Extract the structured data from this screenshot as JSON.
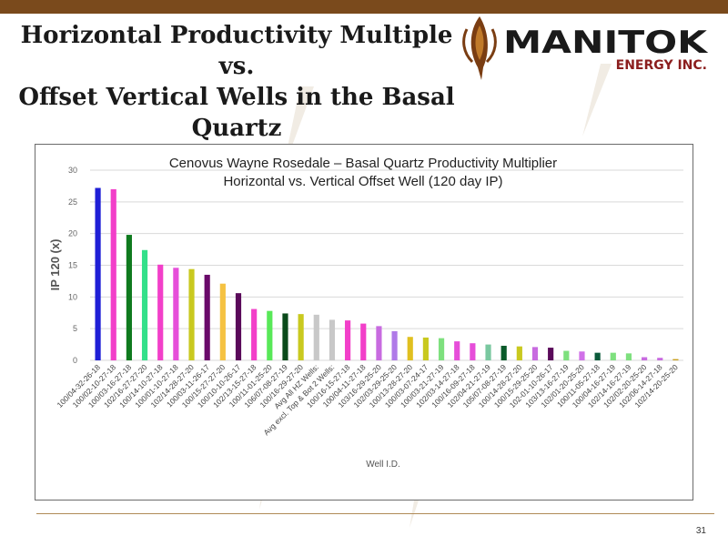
{
  "slide": {
    "title_lines": [
      "Horizontal Productivity Multiple vs.",
      "Offset Vertical Wells in the Basal",
      "Quartz"
    ],
    "page_number": "31"
  },
  "logo": {
    "name": "MANITOK",
    "subtitle": "ENERGY INC.",
    "icon": "antler-flame-icon"
  },
  "colors": {
    "top_band": "#7a4a1c",
    "logo_text": "#1a1a1a",
    "logo_accent": "#8b1e1e",
    "rule": "#b08a57"
  },
  "chart_data": {
    "type": "bar",
    "title": [
      "Cenovus Wayne Rosedale – Basal Quartz Productivity Multiplier",
      "Horizontal vs. Vertical Offset Well (120 day IP)"
    ],
    "xlabel": "Well I.D.",
    "ylabel": "IP 120 (x)",
    "ylim": [
      0,
      30
    ],
    "yticks": [
      0,
      5,
      10,
      15,
      20,
      25,
      30
    ],
    "grid": true,
    "legend": "none",
    "categories": [
      "100/04-32-26-18",
      "100/02-10-27-18",
      "100/03-16-27-18",
      "102/16-27-27-20",
      "100/14-10-27-18",
      "100/01-10-27-18",
      "102/14-28-27-20",
      "100/03-11-26-17",
      "100/15-27-27-20",
      "100/10-10-26-17",
      "102/13-15-27-18",
      "100/11-01-25-20",
      "106/07-08-27-19",
      "100/16-29-27-20",
      "Avg All HZ Wells:",
      "Avg excl. Top & Bot 2 Wells:",
      "100/16-15-27-18",
      "100/04-11-27-18",
      "103/16-29-25-20",
      "102/03-29-25-20",
      "100/13-28-27-20",
      "100/03-07-24-17",
      "100/03-21-27-19",
      "102/03-14-27-18",
      "100/16-09-27-18",
      "102/04-21-27-19",
      "105/07-08-27-19",
      "100/14-28-27-20",
      "100/15-29-25-20",
      "102-01-10-26-17",
      "103/13-16-27-19",
      "102/01-20-25-20",
      "100/11-05-27-18",
      "100/04-16-27-19",
      "102/14-16-27-19",
      "102/02-20-25-20",
      "102/06-14-27-18",
      "102/14-20-25-20"
    ],
    "values": [
      27.2,
      27.0,
      19.8,
      17.4,
      15.1,
      14.6,
      14.4,
      13.5,
      12.1,
      10.6,
      8.1,
      7.8,
      7.4,
      7.3,
      7.2,
      6.4,
      6.3,
      5.8,
      5.4,
      4.6,
      3.7,
      3.6,
      3.5,
      3.0,
      2.7,
      2.5,
      2.3,
      2.2,
      2.1,
      2.0,
      1.5,
      1.4,
      1.2,
      1.2,
      1.1,
      0.5,
      0.4,
      0.2
    ],
    "colors": [
      "#1f1fd6",
      "#f23fc9",
      "#0f7a1e",
      "#33e08a",
      "#f23fc9",
      "#e64ed9",
      "#c9c91f",
      "#6a0a6a",
      "#f5c242",
      "#5a0a5a",
      "#f23fc9",
      "#58e858",
      "#0a4a1a",
      "#c9c91f",
      "#c8c8c8",
      "#c8c8c8",
      "#f23fc9",
      "#f23fc9",
      "#c86be0",
      "#b07ae8",
      "#e0c020",
      "#c9c91f",
      "#7ee07e",
      "#e64ed9",
      "#e64ed9",
      "#7ac8a0",
      "#0a5a2a",
      "#c9c91f",
      "#c86be0",
      "#5a0a5a",
      "#7ee07e",
      "#d070e8",
      "#0a5a3a",
      "#7ee07e",
      "#7ee07e",
      "#c86be0",
      "#c86be0",
      "#c9a020"
    ]
  }
}
